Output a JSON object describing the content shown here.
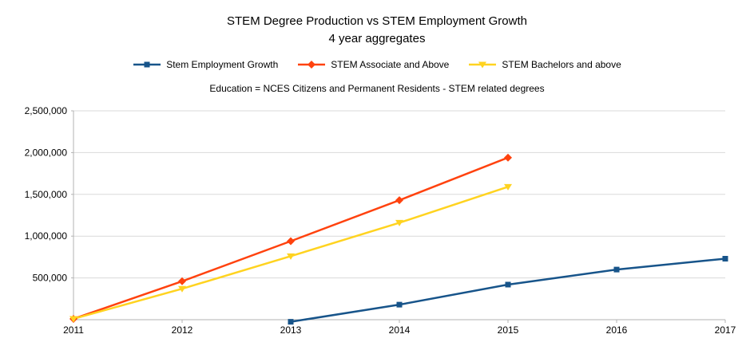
{
  "title": {
    "line1": "STEM Degree Production vs STEM Employment Growth",
    "line2": "4 year aggregates"
  },
  "subtitle": "Education = NCES Citizens and Permanent Residents - STEM related degrees",
  "chart_data": {
    "type": "line",
    "x": [
      "2011",
      "2012",
      "2013",
      "2014",
      "2015",
      "2016",
      "2017"
    ],
    "series": [
      {
        "name": "Stem Employment Growth",
        "color": "#17548A",
        "marker": "square",
        "values": [
          null,
          null,
          -25000,
          180000,
          420000,
          600000,
          730000
        ]
      },
      {
        "name": "STEM Associate and Above",
        "color": "#FF420E",
        "marker": "diamond",
        "values": [
          10000,
          460000,
          940000,
          1430000,
          1940000,
          null,
          null
        ]
      },
      {
        "name": "STEM Bachelors and above",
        "color": "#FFD320",
        "marker": "triangle-down",
        "values": [
          10000,
          370000,
          760000,
          1160000,
          1590000,
          null,
          null
        ]
      }
    ],
    "ylim": [
      0,
      2500000
    ],
    "yticks": [
      {
        "value": 500000,
        "label": "500,000"
      },
      {
        "value": 1000000,
        "label": "1,000,000"
      },
      {
        "value": 1500000,
        "label": "1,500,000"
      },
      {
        "value": 2000000,
        "label": "2,000,000"
      },
      {
        "value": 2500000,
        "label": "2,500,000"
      }
    ],
    "grid": "horizontal-only",
    "legend_position": "top",
    "axis_color": "#b3b3b3",
    "grid_color": "#d9d9d9",
    "text_color": "#000000"
  }
}
